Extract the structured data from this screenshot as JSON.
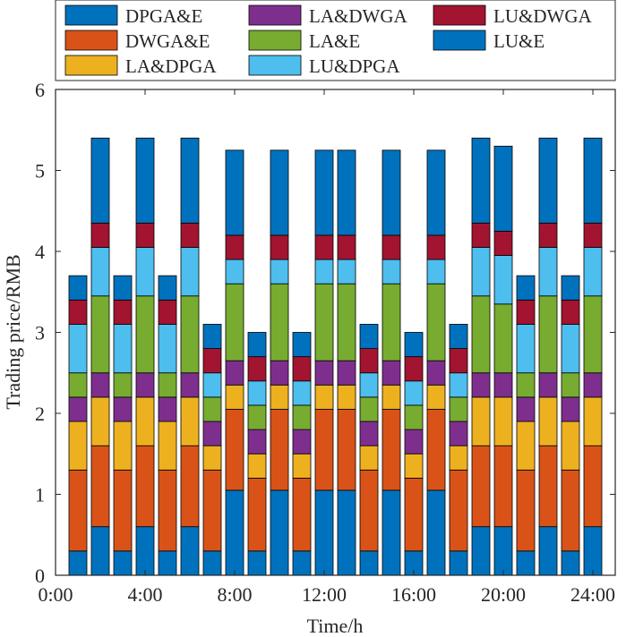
{
  "chart_data": {
    "type": "bar",
    "stacked": true,
    "title": "",
    "xlabel": "Time/h",
    "ylabel": "Trading price/RMB",
    "xlim": [
      0,
      25
    ],
    "ylim": [
      0,
      6
    ],
    "xticks": [
      0,
      4,
      8,
      12,
      16,
      20,
      24
    ],
    "xtick_labels": [
      "0:00",
      "4:00",
      "8:00",
      "12:00",
      "16:00",
      "20:00",
      "24:00"
    ],
    "yticks": [
      0,
      1,
      2,
      3,
      4,
      5,
      6
    ],
    "ytick_labels": [
      "0",
      "1",
      "2",
      "3",
      "4",
      "5",
      "6"
    ],
    "legend_position": "top",
    "categories": [
      1,
      2,
      3,
      4,
      5,
      6,
      7,
      8,
      9,
      10,
      11,
      12,
      13,
      14,
      15,
      16,
      17,
      18,
      19,
      20,
      21,
      22,
      23,
      24
    ],
    "series": [
      {
        "name": "LU&E",
        "color": "#0072BD",
        "values": [
          0.3,
          0.6,
          0.3,
          0.6,
          0.3,
          0.6,
          0.3,
          1.05,
          0.3,
          1.05,
          0.3,
          1.05,
          1.05,
          0.3,
          1.05,
          0.3,
          1.05,
          0.3,
          0.6,
          0.6,
          0.3,
          0.6,
          0.3,
          0.6
        ]
      },
      {
        "name": "DWGA&E",
        "color": "#D95319",
        "values": [
          1.0,
          1.0,
          1.0,
          1.0,
          1.0,
          1.0,
          1.0,
          1.0,
          0.9,
          1.0,
          0.9,
          1.0,
          1.0,
          1.0,
          1.0,
          0.9,
          1.0,
          1.0,
          1.0,
          1.0,
          1.0,
          1.0,
          1.0,
          1.0
        ]
      },
      {
        "name": "LA&DPGA",
        "color": "#EDB120",
        "values": [
          0.6,
          0.6,
          0.6,
          0.6,
          0.6,
          0.6,
          0.3,
          0.3,
          0.3,
          0.3,
          0.3,
          0.3,
          0.3,
          0.3,
          0.3,
          0.3,
          0.3,
          0.3,
          0.6,
          0.6,
          0.6,
          0.6,
          0.6,
          0.6
        ]
      },
      {
        "name": "LA&DWGA",
        "color": "#7E2F8E",
        "values": [
          0.3,
          0.3,
          0.3,
          0.3,
          0.3,
          0.3,
          0.3,
          0.3,
          0.3,
          0.3,
          0.3,
          0.3,
          0.3,
          0.3,
          0.3,
          0.3,
          0.3,
          0.3,
          0.3,
          0.3,
          0.3,
          0.3,
          0.3,
          0.3
        ]
      },
      {
        "name": "LA&E",
        "color": "#77AC30",
        "values": [
          0.3,
          0.95,
          0.3,
          0.95,
          0.3,
          0.95,
          0.3,
          0.95,
          0.3,
          0.95,
          0.3,
          0.95,
          0.95,
          0.3,
          0.95,
          0.3,
          0.95,
          0.3,
          0.95,
          0.85,
          0.3,
          0.95,
          0.3,
          0.95
        ]
      },
      {
        "name": "LU&DPGA",
        "color": "#4DBEEE",
        "values": [
          0.6,
          0.6,
          0.6,
          0.6,
          0.6,
          0.6,
          0.3,
          0.3,
          0.3,
          0.3,
          0.3,
          0.3,
          0.3,
          0.3,
          0.3,
          0.3,
          0.3,
          0.3,
          0.6,
          0.6,
          0.6,
          0.6,
          0.6,
          0.6
        ]
      },
      {
        "name": "LU&DWGA",
        "color": "#A2142F",
        "values": [
          0.3,
          0.3,
          0.3,
          0.3,
          0.3,
          0.3,
          0.3,
          0.3,
          0.3,
          0.3,
          0.3,
          0.3,
          0.3,
          0.3,
          0.3,
          0.3,
          0.3,
          0.3,
          0.3,
          0.3,
          0.3,
          0.3,
          0.3,
          0.3
        ]
      },
      {
        "name": "DPGA&E",
        "color": "#0072BD",
        "values": [
          0.3,
          1.05,
          0.3,
          1.05,
          0.3,
          1.05,
          0.3,
          1.05,
          0.3,
          1.05,
          0.3,
          1.05,
          1.05,
          0.3,
          1.05,
          0.3,
          1.05,
          0.3,
          1.05,
          1.05,
          0.3,
          1.05,
          0.3,
          1.05
        ]
      }
    ],
    "legend_order": [
      "DPGA&E",
      "LA&DWGA",
      "LU&DWGA",
      "DWGA&E",
      "LA&E",
      "LU&E",
      "LA&DPGA",
      "LU&DPGA"
    ]
  }
}
